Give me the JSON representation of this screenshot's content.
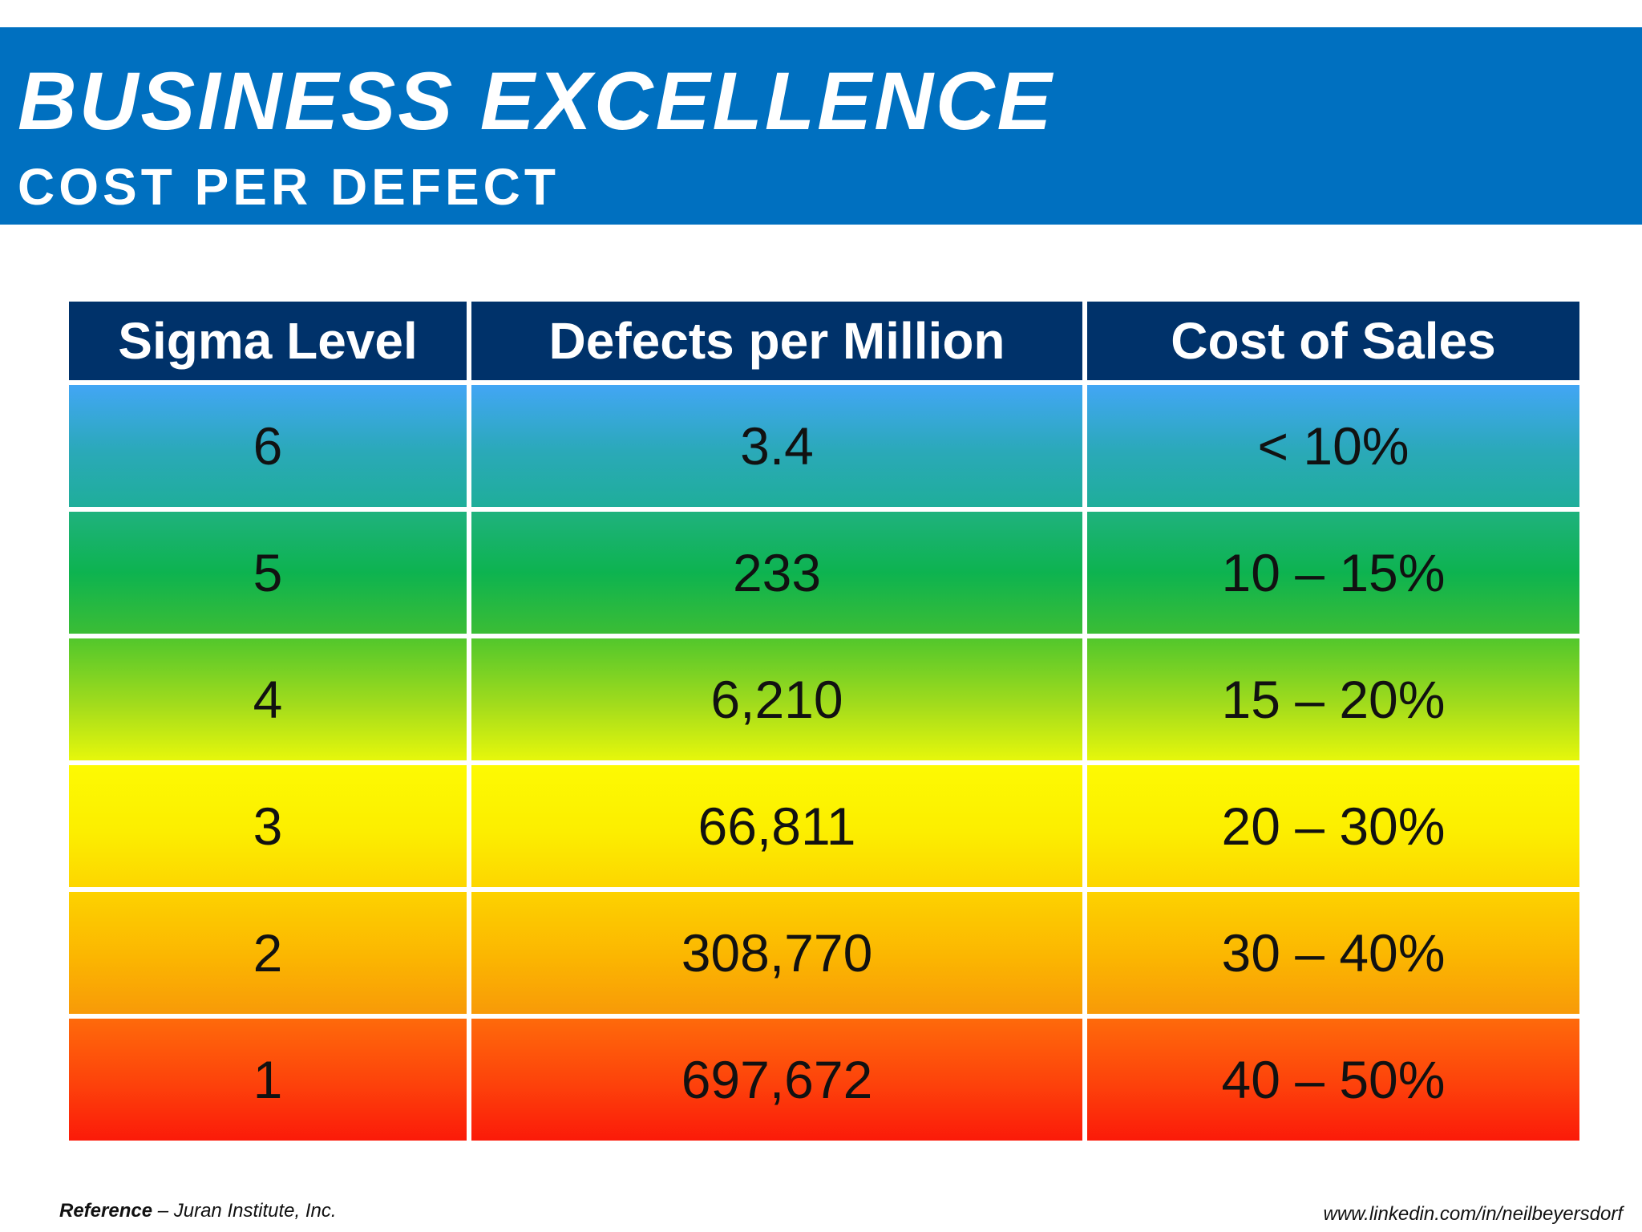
{
  "header": {
    "title": "BUSINESS EXCELLENCE",
    "subtitle": "COST PER DEFECT",
    "band_color": "#0070c0"
  },
  "table": {
    "headers": [
      "Sigma Level",
      "Defects per Million",
      "Cost of Sales"
    ],
    "header_color": "#00326a",
    "rows": [
      {
        "sigma": "6",
        "defects": "3.4",
        "cost": "< 10%",
        "color": "#2aa9b8"
      },
      {
        "sigma": "5",
        "defects": "233",
        "cost": "10 – 15%",
        "color": "#0db350"
      },
      {
        "sigma": "4",
        "defects": "6,210",
        "cost": "15 – 20%",
        "color": "#a3dc1c"
      },
      {
        "sigma": "3",
        "defects": "66,811",
        "cost": "20 – 30%",
        "color": "#fcee00"
      },
      {
        "sigma": "2",
        "defects": "308,770",
        "cost": "30 – 40%",
        "color": "#fbb501"
      },
      {
        "sigma": "1",
        "defects": "697,672",
        "cost": "40 – 50%",
        "color": "#fd410b"
      }
    ]
  },
  "footer": {
    "reference_label": "Reference",
    "reference_text": " – Juran Institute, Inc.",
    "url": "www.linkedin.com/in/neilbeyersdorf"
  }
}
